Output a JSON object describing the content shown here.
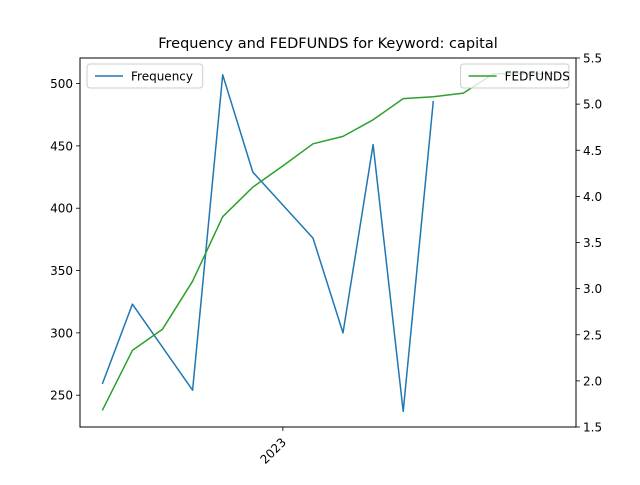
{
  "chart_data": {
    "type": "line",
    "title": "Frequency and FEDFUNDS for Keyword: capital",
    "xlabel": "",
    "ylabel_left": "",
    "ylabel_right": "",
    "x": [
      "2022-07",
      "2022-08",
      "2022-09",
      "2022-10",
      "2022-11",
      "2022-12",
      "2023-01",
      "2023-02",
      "2023-03",
      "2023-04",
      "2023-05",
      "2023-06",
      "2023-07",
      "2023-08",
      "2023-09",
      "2023-10"
    ],
    "x_ticks": [
      {
        "date": "2023-01",
        "label": "2023"
      }
    ],
    "ylim_left": [
      224.5,
      520.5
    ],
    "yticks_left": [
      250,
      300,
      350,
      400,
      450,
      500
    ],
    "ylim_right": [
      1.5,
      5.5
    ],
    "yticks_right": [
      1.5,
      2.0,
      2.5,
      3.0,
      3.5,
      4.0,
      4.5,
      5.0,
      5.5
    ],
    "series": [
      {
        "name": "Frequency",
        "axis": "left",
        "color": "#1f77b4",
        "points": [
          {
            "x": "2022-07",
            "y": 259
          },
          {
            "x": "2022-08",
            "y": 323
          },
          {
            "x": "2022-10",
            "y": 254
          },
          {
            "x": "2022-11",
            "y": 507
          },
          {
            "x": "2022-12",
            "y": 429
          },
          {
            "x": "2023-02",
            "y": 376
          },
          {
            "x": "2023-03",
            "y": 300
          },
          {
            "x": "2023-04",
            "y": 451
          },
          {
            "x": "2023-05",
            "y": 237
          },
          {
            "x": "2023-06",
            "y": 486
          }
        ]
      },
      {
        "name": "FEDFUNDS",
        "axis": "right",
        "color": "#2ca02c",
        "points": [
          {
            "x": "2022-07",
            "y": 1.68
          },
          {
            "x": "2022-08",
            "y": 2.33
          },
          {
            "x": "2022-09",
            "y": 2.56
          },
          {
            "x": "2022-10",
            "y": 3.08
          },
          {
            "x": "2022-11",
            "y": 3.78
          },
          {
            "x": "2022-12",
            "y": 4.1
          },
          {
            "x": "2023-01",
            "y": 4.33
          },
          {
            "x": "2023-02",
            "y": 4.57
          },
          {
            "x": "2023-03",
            "y": 4.65
          },
          {
            "x": "2023-04",
            "y": 4.83
          },
          {
            "x": "2023-05",
            "y": 5.06
          },
          {
            "x": "2023-06",
            "y": 5.08
          },
          {
            "x": "2023-07",
            "y": 5.12
          },
          {
            "x": "2023-08",
            "y": 5.33
          },
          {
            "x": "2023-09",
            "y": 5.33
          },
          {
            "x": "2023-10",
            "y": 5.33
          }
        ]
      }
    ],
    "legends": [
      {
        "series": "Frequency",
        "placement": "upper left"
      },
      {
        "series": "FEDFUNDS",
        "placement": "upper right"
      }
    ],
    "grid": false
  }
}
